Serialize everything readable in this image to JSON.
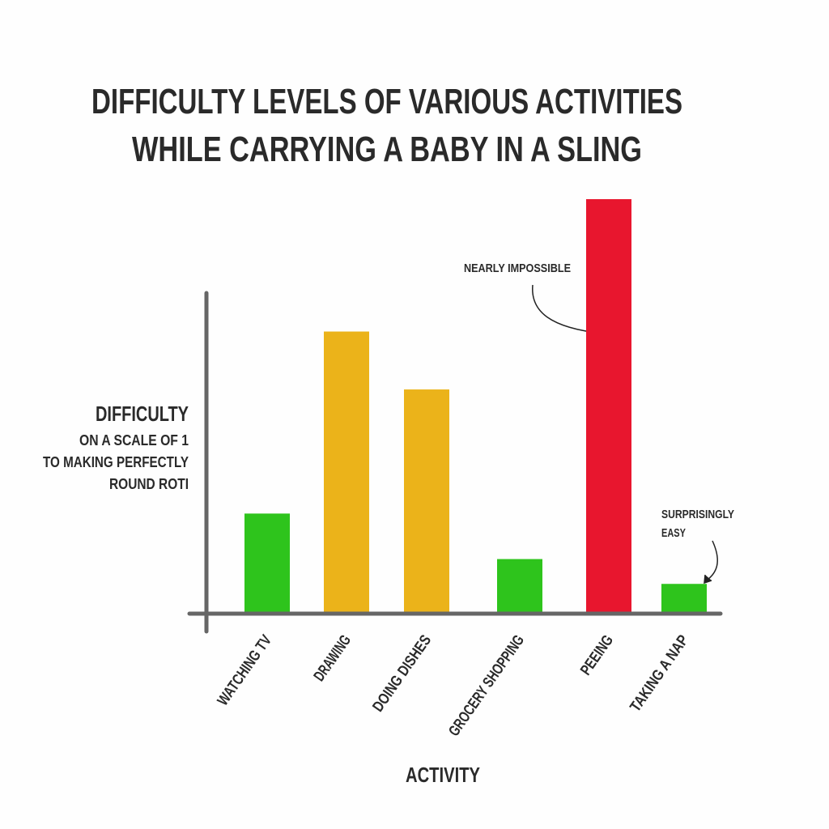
{
  "chart_data": {
    "type": "bar",
    "title": [
      "DIFFICULTY LEVELS OF VARIOUS ACTIVITIES",
      "WHILE CARRYING A BABY IN A SLING"
    ],
    "y_label": [
      "DIFFICULTY",
      "ON A SCALE OF 1",
      "TO MAKING PERFECTLY",
      "ROUND ROTI"
    ],
    "x_label": "ACTIVITY",
    "categories": [
      "WATCHING TV",
      "DRAWING",
      "DOING DISHES",
      "GROCERY SHOPPING",
      "PEEING",
      "TAKING A NAP"
    ],
    "values": [
      24,
      68,
      54,
      13,
      100,
      7
    ],
    "colors": [
      "#2ec41c",
      "#ebb31a",
      "#ebb31a",
      "#2ec41c",
      "#e8162e",
      "#2ec41c"
    ],
    "ylim": [
      0,
      100
    ],
    "annotations": [
      [
        "NEARLY IMPOSSIBLE"
      ],
      [
        "SURPRISINGLY",
        "EASY"
      ]
    ]
  }
}
